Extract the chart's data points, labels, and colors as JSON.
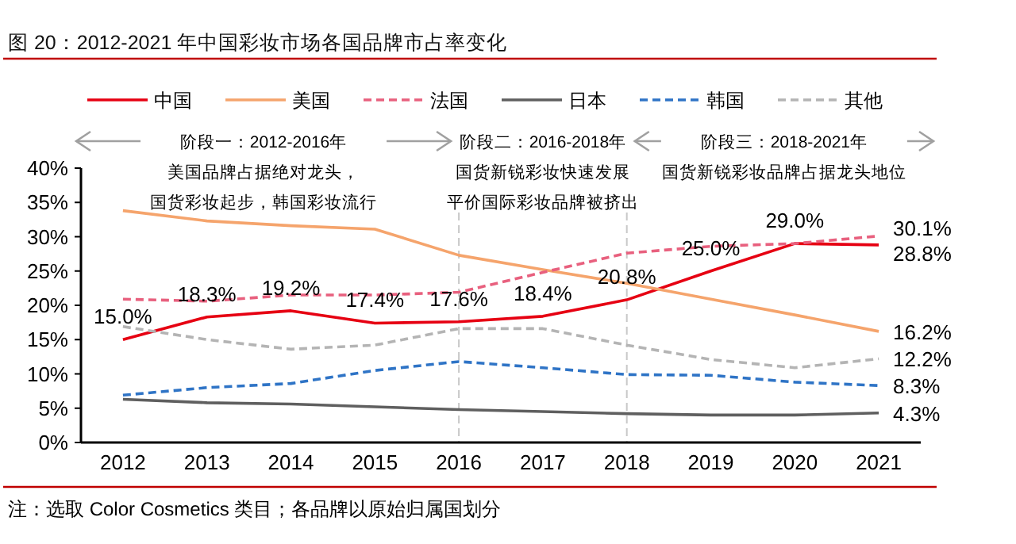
{
  "chart_data": {
    "type": "line",
    "title": "图 20：2012-2021 年中国彩妆市场各国品牌市占率变化",
    "x": [
      2012,
      2013,
      2014,
      2015,
      2016,
      2017,
      2018,
      2019,
      2020,
      2021
    ],
    "xlim": [
      2011.5,
      2021.5
    ],
    "xticks": [
      2012,
      2013,
      2014,
      2015,
      2016,
      2017,
      2018,
      2019,
      2020,
      2021
    ],
    "ylim": [
      0,
      40
    ],
    "yticks": [
      {
        "value": 0,
        "label": "0%"
      },
      {
        "value": 5,
        "label": "5%"
      },
      {
        "value": 10,
        "label": "10%"
      },
      {
        "value": 15,
        "label": "15%"
      },
      {
        "value": 20,
        "label": "20%"
      },
      {
        "value": 25,
        "label": "25%"
      },
      {
        "value": 30,
        "label": "30%"
      },
      {
        "value": 35,
        "label": "35%"
      },
      {
        "value": 40,
        "label": "40%"
      }
    ],
    "series": [
      {
        "name": "中国",
        "color": "#e60012",
        "line_style": "solid",
        "values": [
          15.0,
          18.3,
          19.2,
          17.4,
          17.6,
          18.4,
          20.8,
          25.0,
          29.0,
          28.8
        ],
        "value_labels": [
          "15.0%",
          "18.3%",
          "19.2%",
          "17.4%",
          "17.6%",
          "18.4%",
          "20.8%",
          "25.0%",
          "29.0%",
          "28.8%"
        ]
      },
      {
        "name": "美国",
        "color": "#f5a46c",
        "line_style": "solid",
        "values": [
          33.8,
          32.3,
          31.6,
          31.1,
          27.3,
          25.2,
          23.2,
          20.9,
          18.6,
          16.2
        ],
        "value_labels": [
          null,
          null,
          null,
          null,
          null,
          null,
          null,
          null,
          null,
          "16.2%"
        ]
      },
      {
        "name": "法国",
        "color": "#e8607e",
        "line_style": "dashed",
        "values": [
          20.9,
          20.6,
          21.5,
          21.5,
          21.9,
          24.8,
          27.6,
          28.6,
          29.0,
          30.1
        ],
        "value_labels": [
          null,
          null,
          null,
          null,
          null,
          null,
          null,
          null,
          null,
          "30.1%"
        ]
      },
      {
        "name": "日本",
        "color": "#5f5f5f",
        "line_style": "solid",
        "values": [
          6.3,
          5.8,
          5.6,
          5.2,
          4.8,
          4.5,
          4.2,
          4.0,
          4.0,
          4.3
        ],
        "value_labels": [
          null,
          null,
          null,
          null,
          null,
          null,
          null,
          null,
          null,
          "4.3%"
        ]
      },
      {
        "name": "韩国",
        "color": "#2f74c6",
        "line_style": "dashed",
        "values": [
          6.9,
          8.0,
          8.6,
          10.5,
          11.8,
          10.9,
          9.9,
          9.8,
          8.8,
          8.3
        ],
        "value_labels": [
          null,
          null,
          null,
          null,
          null,
          null,
          null,
          null,
          null,
          "8.3%"
        ]
      },
      {
        "name": "其他",
        "color": "#b4b4b4",
        "line_style": "dashed",
        "values": [
          16.9,
          15.0,
          13.6,
          14.2,
          16.6,
          16.6,
          14.2,
          12.1,
          10.9,
          12.2
        ],
        "value_labels": [
          null,
          null,
          null,
          null,
          null,
          null,
          null,
          null,
          null,
          "12.2%"
        ]
      }
    ],
    "ref_lines": [
      {
        "axis": "x",
        "value": 2016,
        "color": "#c8c8c8",
        "line_style": "dashed"
      },
      {
        "axis": "x",
        "value": 2018,
        "color": "#c8c8c8",
        "line_style": "dashed"
      }
    ],
    "annotations": [
      "阶段一：2012-2016年",
      "阶段二：2016-2018年",
      "阶段三：2018-2021年",
      "美国品牌占据绝对龙头，",
      "国货新锐彩妆快速发展",
      "国货新锐彩妆品牌占据龙头地位",
      "国货彩妆起步，韩国彩妆流行",
      "平价国际彩妆品牌被挤出",
      "注：选取 Color Cosmetics 类目；各品牌以原始归属国划分"
    ],
    "legend": "top",
    "grid": false
  }
}
